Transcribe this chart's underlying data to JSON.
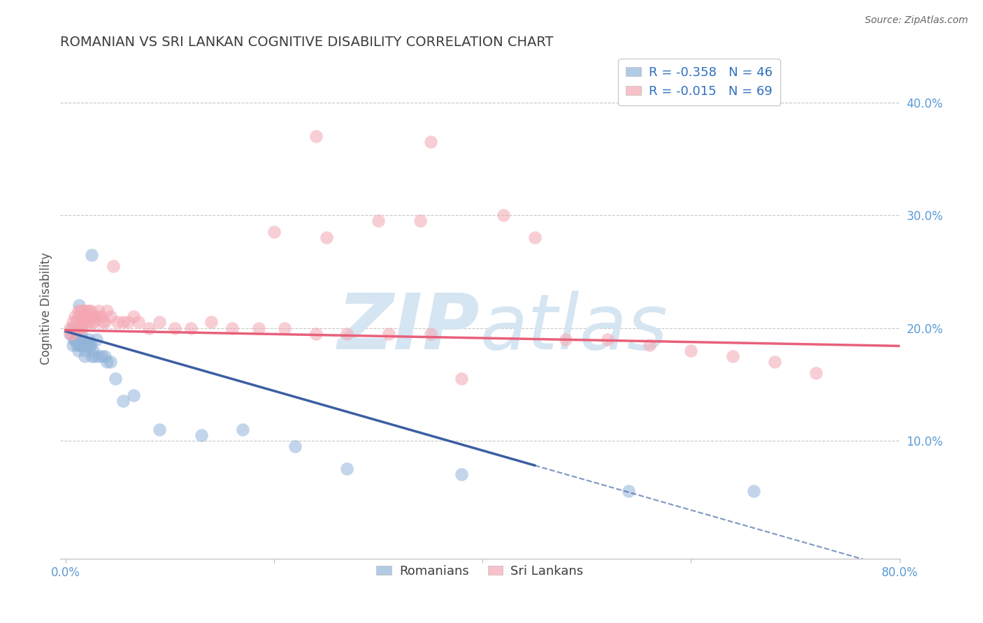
{
  "title": "ROMANIAN VS SRI LANKAN COGNITIVE DISABILITY CORRELATION CHART",
  "source": "Source: ZipAtlas.com",
  "ylabel": "Cognitive Disability",
  "xlim": [
    -0.005,
    0.8
  ],
  "ylim": [
    -0.005,
    0.44
  ],
  "ytick_vals": [
    0.1,
    0.2,
    0.3,
    0.4
  ],
  "ytick_labels": [
    "10.0%",
    "20.0%",
    "30.0%",
    "40.0%"
  ],
  "xtick_vals": [
    0.0,
    0.2,
    0.4,
    0.6,
    0.8
  ],
  "xtick_labels": [
    "0.0%",
    "",
    "",
    "",
    "80.0%"
  ],
  "romanian_R": -0.358,
  "romanian_N": 46,
  "srilankan_R": -0.015,
  "srilankan_N": 69,
  "romanian_color": "#92B4D9",
  "srilankan_color": "#F4A7B3",
  "romanian_line_color": "#3A5FA0",
  "srilankan_line_color": "#E8607A",
  "background_color": "#FFFFFF",
  "grid_color": "#C8C8C8",
  "title_color": "#3D3D3D",
  "axis_tick_color": "#5B9BD5",
  "watermark_color": "#D5E5F2",
  "legend_R_color": "#2E6FBF",
  "ro_x": [
    0.004,
    0.006,
    0.007,
    0.008,
    0.009,
    0.009,
    0.01,
    0.011,
    0.012,
    0.013,
    0.013,
    0.014,
    0.015,
    0.015,
    0.016,
    0.017,
    0.018,
    0.018,
    0.019,
    0.02,
    0.021,
    0.022,
    0.022,
    0.023,
    0.024,
    0.025,
    0.025,
    0.026,
    0.028,
    0.03,
    0.032,
    0.035,
    0.038,
    0.04,
    0.043,
    0.048,
    0.055,
    0.065,
    0.09,
    0.13,
    0.17,
    0.22,
    0.27,
    0.38,
    0.54,
    0.66
  ],
  "ro_y": [
    0.195,
    0.2,
    0.185,
    0.19,
    0.19,
    0.195,
    0.19,
    0.185,
    0.18,
    0.185,
    0.22,
    0.185,
    0.185,
    0.195,
    0.19,
    0.185,
    0.185,
    0.175,
    0.18,
    0.185,
    0.185,
    0.185,
    0.19,
    0.185,
    0.185,
    0.175,
    0.265,
    0.18,
    0.175,
    0.19,
    0.175,
    0.175,
    0.175,
    0.17,
    0.17,
    0.155,
    0.135,
    0.14,
    0.11,
    0.105,
    0.11,
    0.095,
    0.075,
    0.07,
    0.055,
    0.055
  ],
  "sl_x": [
    0.004,
    0.005,
    0.006,
    0.007,
    0.008,
    0.009,
    0.01,
    0.011,
    0.012,
    0.013,
    0.013,
    0.014,
    0.015,
    0.015,
    0.016,
    0.017,
    0.018,
    0.019,
    0.02,
    0.021,
    0.022,
    0.022,
    0.023,
    0.024,
    0.025,
    0.026,
    0.027,
    0.028,
    0.03,
    0.032,
    0.034,
    0.036,
    0.038,
    0.04,
    0.043,
    0.046,
    0.05,
    0.055,
    0.06,
    0.065,
    0.07,
    0.08,
    0.09,
    0.105,
    0.12,
    0.14,
    0.16,
    0.185,
    0.21,
    0.24,
    0.27,
    0.31,
    0.35,
    0.2,
    0.25,
    0.3,
    0.34,
    0.38,
    0.24,
    0.35,
    0.42,
    0.45,
    0.48,
    0.52,
    0.56,
    0.6,
    0.64,
    0.68,
    0.72
  ],
  "sl_y": [
    0.2,
    0.195,
    0.195,
    0.205,
    0.2,
    0.21,
    0.205,
    0.2,
    0.215,
    0.21,
    0.2,
    0.215,
    0.205,
    0.2,
    0.21,
    0.215,
    0.205,
    0.21,
    0.215,
    0.205,
    0.215,
    0.205,
    0.21,
    0.215,
    0.21,
    0.205,
    0.205,
    0.21,
    0.21,
    0.215,
    0.21,
    0.205,
    0.205,
    0.215,
    0.21,
    0.255,
    0.205,
    0.205,
    0.205,
    0.21,
    0.205,
    0.2,
    0.205,
    0.2,
    0.2,
    0.205,
    0.2,
    0.2,
    0.2,
    0.195,
    0.195,
    0.195,
    0.195,
    0.285,
    0.28,
    0.295,
    0.295,
    0.155,
    0.37,
    0.365,
    0.3,
    0.28,
    0.19,
    0.19,
    0.185,
    0.18,
    0.175,
    0.17,
    0.16
  ],
  "ro_line_x_start": 0.0,
  "ro_line_x_solid_end": 0.45,
  "ro_line_x_dash_end": 0.8,
  "sl_line_x_start": 0.0,
  "sl_line_x_end": 0.8
}
